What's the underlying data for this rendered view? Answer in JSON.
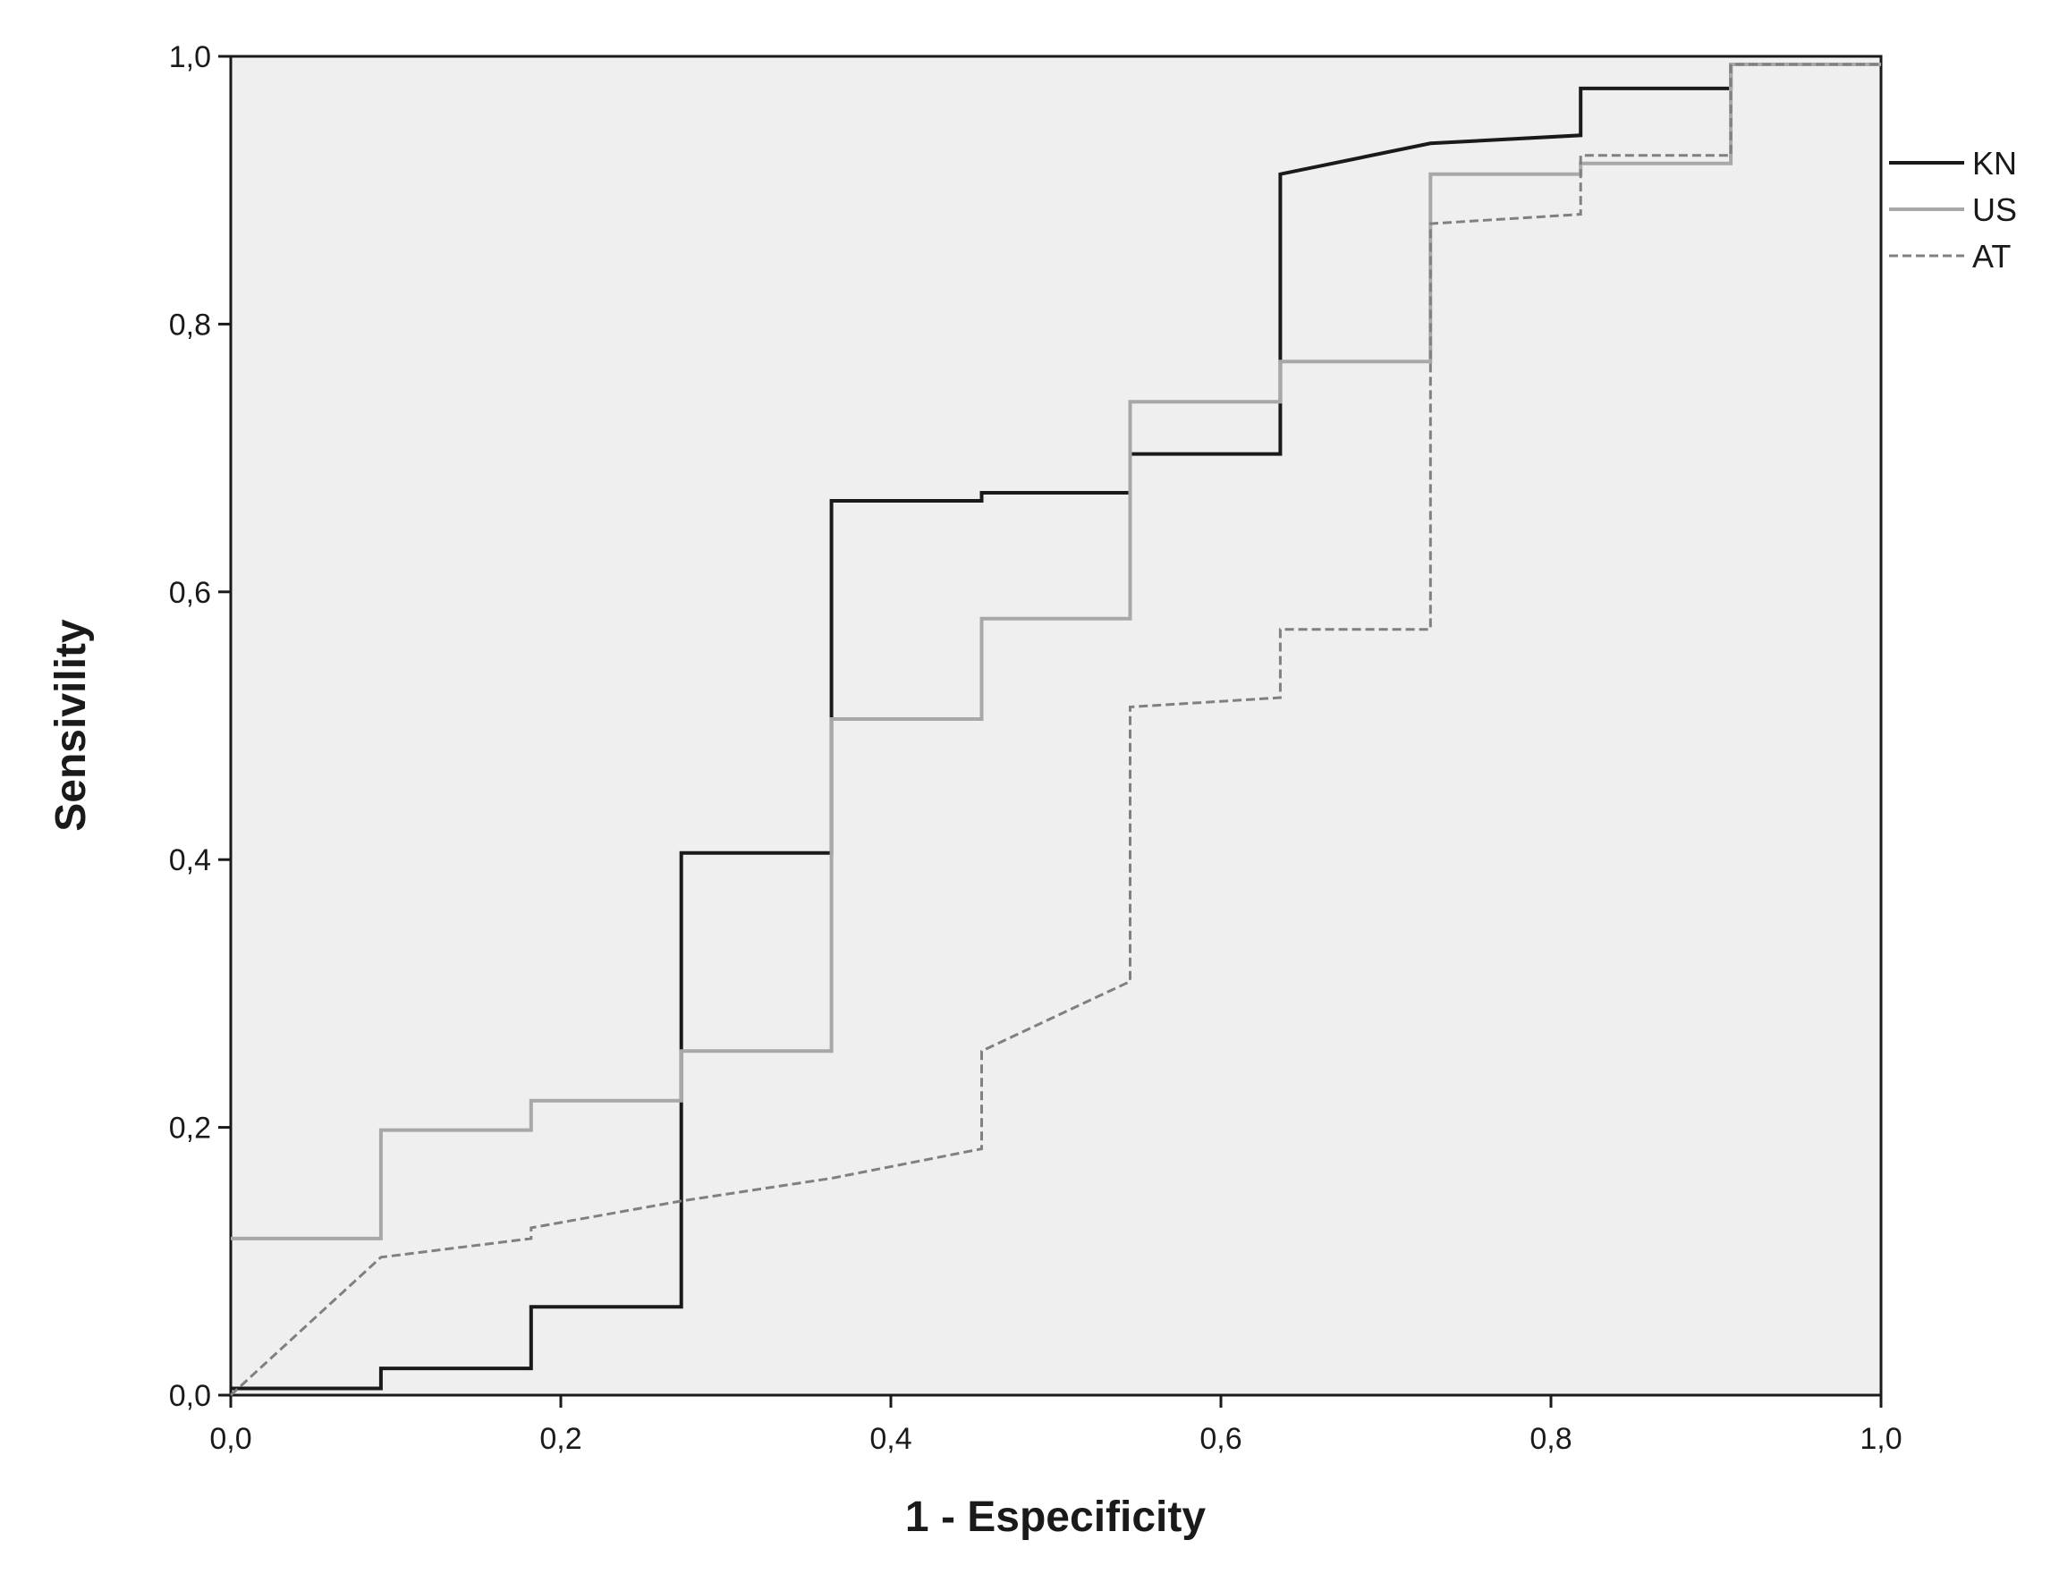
{
  "chart_data": {
    "type": "line",
    "title": "",
    "xlabel": "1 - Especificity",
    "ylabel": "Sensivility",
    "xlim": [
      0,
      1
    ],
    "ylim": [
      0,
      1
    ],
    "x_ticks": [
      0,
      0.2,
      0.4,
      0.6,
      0.8,
      1.0
    ],
    "y_ticks": [
      0,
      0.2,
      0.4,
      0.6,
      0.8,
      1.0
    ],
    "x_tick_labels": [
      "0,0",
      "0,2",
      "0,4",
      "0,6",
      "0,8",
      "1,0"
    ],
    "y_tick_labels": [
      "0,0",
      "0,2",
      "0,4",
      "0,6",
      "0,8",
      "1,0"
    ],
    "grid": false,
    "legend_position": "right",
    "plot_background": "#efefef",
    "series": [
      {
        "name": "KN",
        "color": "#1a1a1a",
        "dash": "solid",
        "points": [
          [
            0,
            0.005
          ],
          [
            0.091,
            0.005
          ],
          [
            0.091,
            0.02
          ],
          [
            0.182,
            0.02
          ],
          [
            0.182,
            0.066
          ],
          [
            0.273,
            0.066
          ],
          [
            0.273,
            0.405
          ],
          [
            0.364,
            0.405
          ],
          [
            0.364,
            0.668
          ],
          [
            0.455,
            0.668
          ],
          [
            0.455,
            0.674
          ],
          [
            0.545,
            0.674
          ],
          [
            0.545,
            0.703
          ],
          [
            0.636,
            0.703
          ],
          [
            0.636,
            0.912
          ],
          [
            0.727,
            0.935
          ],
          [
            0.818,
            0.941
          ],
          [
            0.818,
            0.976
          ],
          [
            0.909,
            0.976
          ],
          [
            0.909,
            0.994
          ],
          [
            1,
            0.994
          ]
        ]
      },
      {
        "name": "US",
        "color": "#a8a8a8",
        "dash": "solid",
        "points": [
          [
            0,
            0.117
          ],
          [
            0.091,
            0.117
          ],
          [
            0.091,
            0.198
          ],
          [
            0.182,
            0.198
          ],
          [
            0.182,
            0.22
          ],
          [
            0.273,
            0.22
          ],
          [
            0.273,
            0.257
          ],
          [
            0.364,
            0.257
          ],
          [
            0.364,
            0.505
          ],
          [
            0.455,
            0.505
          ],
          [
            0.455,
            0.58
          ],
          [
            0.545,
            0.58
          ],
          [
            0.545,
            0.742
          ],
          [
            0.636,
            0.742
          ],
          [
            0.636,
            0.772
          ],
          [
            0.727,
            0.772
          ],
          [
            0.727,
            0.912
          ],
          [
            0.818,
            0.912
          ],
          [
            0.818,
            0.92
          ],
          [
            0.909,
            0.92
          ],
          [
            0.909,
            0.994
          ],
          [
            1,
            0.994
          ],
          [
            1,
            0.994
          ]
        ]
      },
      {
        "name": "AT",
        "color": "#808080",
        "dash": "dashed",
        "points": [
          [
            0,
            0
          ],
          [
            0.091,
            0.103
          ],
          [
            0.182,
            0.117
          ],
          [
            0.182,
            0.125
          ],
          [
            0.273,
            0.145
          ],
          [
            0.364,
            0.162
          ],
          [
            0.455,
            0.184
          ],
          [
            0.455,
            0.257
          ],
          [
            0.545,
            0.309
          ],
          [
            0.545,
            0.514
          ],
          [
            0.636,
            0.521
          ],
          [
            0.636,
            0.572
          ],
          [
            0.727,
            0.572
          ],
          [
            0.727,
            0.875
          ],
          [
            0.818,
            0.882
          ],
          [
            0.818,
            0.926
          ],
          [
            0.909,
            0.926
          ],
          [
            0.909,
            0.994
          ],
          [
            1,
            0.994
          ]
        ]
      }
    ]
  }
}
